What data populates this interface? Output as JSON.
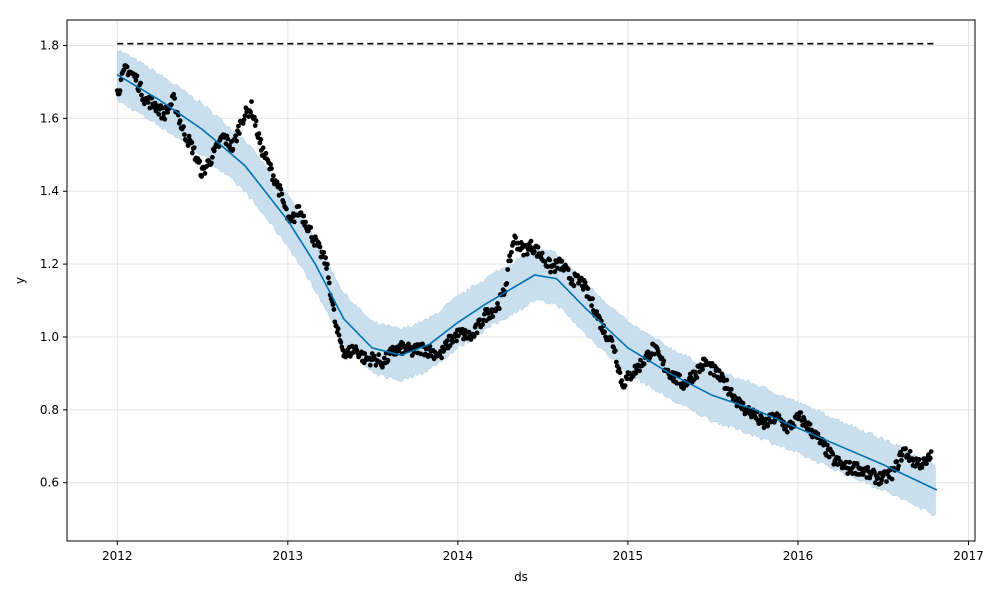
{
  "chart_data": {
    "type": "line",
    "title": "",
    "xlabel": "ds",
    "ylabel": "y",
    "xlim": [
      "2011-09-15",
      "2017-01-15"
    ],
    "ylim": [
      0.44,
      1.87
    ],
    "x_ticks": [
      "2012",
      "2013",
      "2014",
      "2015",
      "2016",
      "2017"
    ],
    "y_ticks": [
      "0.6",
      "0.8",
      "1.0",
      "1.2",
      "1.4",
      "1.6",
      "1.8"
    ],
    "grid": true,
    "colors": {
      "forecast_line": "#0072B2",
      "interval_fill": "#C9DFEE",
      "observations": "#000000",
      "cap_line": "#000000"
    },
    "cap": 1.805,
    "forecast": {
      "name": "yhat",
      "x": [
        "2012-01-01",
        "2012-04-01",
        "2012-07-01",
        "2012-10-01",
        "2013-01-01",
        "2013-03-01",
        "2013-05-01",
        "2013-07-01",
        "2013-09-01",
        "2013-11-01",
        "2014-01-01",
        "2014-03-01",
        "2014-06-15",
        "2014-08-01",
        "2014-10-01",
        "2015-01-01",
        "2015-04-01",
        "2015-07-01",
        "2015-10-01",
        "2016-01-01",
        "2016-04-01",
        "2016-07-01",
        "2016-10-25"
      ],
      "values": [
        1.72,
        1.65,
        1.57,
        1.47,
        1.32,
        1.2,
        1.05,
        0.97,
        0.95,
        0.98,
        1.04,
        1.09,
        1.17,
        1.16,
        1.08,
        0.97,
        0.9,
        0.84,
        0.8,
        0.75,
        0.7,
        0.65,
        0.58
      ]
    },
    "interval": {
      "name": "yhat_lower / yhat_upper",
      "x": [
        "2012-01-01",
        "2012-04-01",
        "2012-07-01",
        "2012-10-01",
        "2013-01-01",
        "2013-03-01",
        "2013-05-01",
        "2013-07-01",
        "2013-09-01",
        "2013-11-01",
        "2014-01-01",
        "2014-03-01",
        "2014-06-15",
        "2014-08-01",
        "2014-10-01",
        "2015-01-01",
        "2015-04-01",
        "2015-07-01",
        "2015-10-01",
        "2016-01-01",
        "2016-04-01",
        "2016-07-01",
        "2016-10-25"
      ],
      "lower": [
        1.65,
        1.58,
        1.5,
        1.4,
        1.25,
        1.13,
        0.98,
        0.9,
        0.88,
        0.91,
        0.97,
        1.02,
        1.1,
        1.09,
        1.01,
        0.9,
        0.83,
        0.77,
        0.73,
        0.68,
        0.63,
        0.58,
        0.51
      ],
      "upper": [
        1.79,
        1.72,
        1.64,
        1.54,
        1.39,
        1.27,
        1.12,
        1.04,
        1.02,
        1.05,
        1.11,
        1.16,
        1.24,
        1.23,
        1.15,
        1.04,
        0.97,
        0.91,
        0.87,
        0.82,
        0.77,
        0.72,
        0.65
      ]
    },
    "observations": {
      "name": "y",
      "anchors": {
        "x": [
          "2012-01-01",
          "2012-01-20",
          "2012-02-10",
          "2012-03-01",
          "2012-03-20",
          "2012-04-10",
          "2012-05-01",
          "2012-05-20",
          "2012-06-10",
          "2012-07-01",
          "2012-07-25",
          "2012-08-15",
          "2012-09-05",
          "2012-09-25",
          "2012-10-15",
          "2012-11-05",
          "2012-11-25",
          "2012-12-15",
          "2013-01-05",
          "2013-01-25",
          "2013-02-15",
          "2013-03-05",
          "2013-03-25",
          "2013-04-15",
          "2013-05-05",
          "2013-05-25",
          "2013-06-15",
          "2013-07-05",
          "2013-07-25",
          "2013-08-15",
          "2013-09-05",
          "2013-09-25",
          "2013-10-15",
          "2013-11-05",
          "2013-11-25",
          "2013-12-15",
          "2014-01-05",
          "2014-02-01",
          "2014-03-01",
          "2014-03-25",
          "2014-04-10",
          "2014-05-01",
          "2014-05-20",
          "2014-06-10",
          "2014-07-01",
          "2014-07-20",
          "2014-08-10",
          "2014-09-01",
          "2014-09-25",
          "2014-10-20",
          "2014-11-10",
          "2014-12-01",
          "2014-12-20",
          "2015-01-10",
          "2015-02-01",
          "2015-02-25",
          "2015-03-20",
          "2015-04-10",
          "2015-05-01",
          "2015-05-25",
          "2015-06-15",
          "2015-07-10",
          "2015-08-05",
          "2015-09-01",
          "2015-09-25",
          "2015-10-20",
          "2015-11-15",
          "2015-12-10",
          "2016-01-05",
          "2016-02-01",
          "2016-02-25",
          "2016-03-20",
          "2016-04-15",
          "2016-05-10",
          "2016-06-05",
          "2016-07-01",
          "2016-07-25",
          "2016-08-15",
          "2016-09-05",
          "2016-10-01",
          "2016-10-15"
        ],
        "values": [
          1.67,
          1.74,
          1.71,
          1.65,
          1.64,
          1.61,
          1.65,
          1.57,
          1.52,
          1.45,
          1.5,
          1.55,
          1.52,
          1.6,
          1.63,
          1.52,
          1.46,
          1.4,
          1.31,
          1.35,
          1.3,
          1.25,
          1.2,
          1.02,
          0.95,
          0.97,
          0.94,
          0.94,
          0.93,
          0.96,
          0.97,
          0.96,
          0.97,
          0.96,
          0.95,
          0.99,
          1.01,
          1.0,
          1.06,
          1.08,
          1.12,
          1.27,
          1.24,
          1.25,
          1.22,
          1.19,
          1.2,
          1.16,
          1.15,
          1.08,
          1.02,
          0.98,
          0.87,
          0.9,
          0.93,
          0.97,
          0.92,
          0.89,
          0.87,
          0.9,
          0.93,
          0.9,
          0.86,
          0.81,
          0.79,
          0.76,
          0.78,
          0.75,
          0.78,
          0.74,
          0.7,
          0.66,
          0.64,
          0.64,
          0.62,
          0.61,
          0.63,
          0.69,
          0.66,
          0.65,
          0.68
        ]
      }
    }
  }
}
